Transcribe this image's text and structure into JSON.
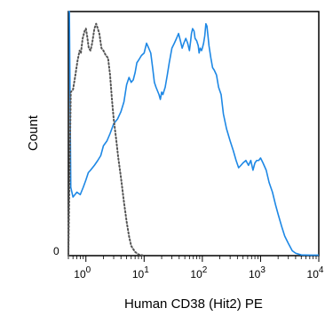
{
  "chart_data": {
    "type": "line",
    "title": "",
    "xlabel": "Human CD38 (Hit2) PE",
    "ylabel": "Count",
    "x_scale": "log",
    "xlim": [
      0.5,
      10000
    ],
    "ylim": [
      0,
      100
    ],
    "x_ticks": [
      {
        "value": 1,
        "base": "10",
        "exp": "0"
      },
      {
        "value": 10,
        "base": "10",
        "exp": "1"
      },
      {
        "value": 100,
        "base": "10",
        "exp": "2"
      },
      {
        "value": 1000,
        "base": "10",
        "exp": "3"
      },
      {
        "value": 10000,
        "base": "10",
        "exp": "4"
      }
    ],
    "y_tick_labels": [
      {
        "value": 0,
        "label": "0"
      }
    ],
    "grid": false,
    "series": [
      {
        "line_style": "solid",
        "color": "#1e88e5",
        "points": [
          [
            0.5,
            100
          ],
          [
            0.52,
            100
          ],
          [
            0.55,
            28
          ],
          [
            0.6,
            24
          ],
          [
            0.7,
            26
          ],
          [
            0.8,
            25
          ],
          [
            0.9,
            28
          ],
          [
            1.0,
            31
          ],
          [
            1.1,
            34
          ],
          [
            1.2,
            35
          ],
          [
            1.4,
            37
          ],
          [
            1.6,
            39
          ],
          [
            1.8,
            41
          ],
          [
            2.0,
            45
          ],
          [
            2.3,
            47
          ],
          [
            2.6,
            50
          ],
          [
            3.0,
            54
          ],
          [
            3.5,
            56
          ],
          [
            4.0,
            59
          ],
          [
            4.5,
            63
          ],
          [
            5.0,
            70
          ],
          [
            5.5,
            73
          ],
          [
            6.0,
            71
          ],
          [
            6.5,
            72
          ],
          [
            7.0,
            75
          ],
          [
            7.5,
            79
          ],
          [
            8.0,
            80
          ],
          [
            9.0,
            82
          ],
          [
            10,
            83
          ],
          [
            11,
            87
          ],
          [
            12,
            85
          ],
          [
            13,
            83
          ],
          [
            14,
            77
          ],
          [
            15,
            71
          ],
          [
            16,
            69
          ],
          [
            18,
            66
          ],
          [
            19,
            64
          ],
          [
            20,
            67
          ],
          [
            21,
            66
          ],
          [
            23,
            69
          ],
          [
            25,
            74
          ],
          [
            27,
            79
          ],
          [
            30,
            85
          ],
          [
            33,
            87
          ],
          [
            36,
            89
          ],
          [
            39,
            91
          ],
          [
            42,
            88
          ],
          [
            45,
            85
          ],
          [
            48,
            87
          ],
          [
            52,
            89
          ],
          [
            56,
            87
          ],
          [
            60,
            84
          ],
          [
            63,
            88
          ],
          [
            65,
            91
          ],
          [
            68,
            93
          ],
          [
            72,
            92
          ],
          [
            75,
            89
          ],
          [
            80,
            88
          ],
          [
            85,
            86
          ],
          [
            88,
            83
          ],
          [
            92,
            85
          ],
          [
            97,
            84
          ],
          [
            100,
            85
          ],
          [
            105,
            87
          ],
          [
            110,
            90
          ],
          [
            115,
            95
          ],
          [
            120,
            94
          ],
          [
            125,
            90
          ],
          [
            130,
            86
          ],
          [
            140,
            81
          ],
          [
            150,
            77
          ],
          [
            160,
            76
          ],
          [
            175,
            74
          ],
          [
            190,
            69
          ],
          [
            210,
            66
          ],
          [
            230,
            58
          ],
          [
            260,
            52
          ],
          [
            300,
            47
          ],
          [
            340,
            43
          ],
          [
            380,
            39
          ],
          [
            420,
            36
          ],
          [
            460,
            37
          ],
          [
            500,
            38
          ],
          [
            560,
            39
          ],
          [
            620,
            37
          ],
          [
            680,
            39
          ],
          [
            740,
            35
          ],
          [
            800,
            38
          ],
          [
            860,
            39
          ],
          [
            930,
            39
          ],
          [
            1000,
            40
          ],
          [
            1100,
            38
          ],
          [
            1250,
            35
          ],
          [
            1400,
            30
          ],
          [
            1600,
            26
          ],
          [
            1800,
            21
          ],
          [
            2000,
            17
          ],
          [
            2300,
            12
          ],
          [
            2600,
            8
          ],
          [
            3000,
            5
          ],
          [
            3500,
            2
          ],
          [
            4000,
            1
          ],
          [
            5000,
            0.3
          ],
          [
            7000,
            0.2
          ],
          [
            10000,
            0.2
          ]
        ]
      },
      {
        "line_style": "dotted",
        "color": "#555555",
        "points": [
          [
            0.5,
            0
          ],
          [
            0.55,
            67
          ],
          [
            0.6,
            68
          ],
          [
            0.65,
            73
          ],
          [
            0.72,
            80
          ],
          [
            0.78,
            84
          ],
          [
            0.82,
            83
          ],
          [
            0.88,
            89
          ],
          [
            0.95,
            92
          ],
          [
            1.0,
            93
          ],
          [
            1.05,
            90
          ],
          [
            1.12,
            85
          ],
          [
            1.2,
            84
          ],
          [
            1.28,
            87
          ],
          [
            1.4,
            93
          ],
          [
            1.5,
            95
          ],
          [
            1.6,
            93
          ],
          [
            1.7,
            91
          ],
          [
            1.85,
            85
          ],
          [
            2.0,
            84
          ],
          [
            2.2,
            82
          ],
          [
            2.4,
            81
          ],
          [
            2.6,
            74
          ],
          [
            2.8,
            64
          ],
          [
            3.0,
            56
          ],
          [
            3.3,
            48
          ],
          [
            3.6,
            40
          ],
          [
            4.0,
            32
          ],
          [
            4.5,
            22
          ],
          [
            5.0,
            14
          ],
          [
            5.5,
            8
          ],
          [
            6.0,
            4
          ],
          [
            7.0,
            1.5
          ],
          [
            8.0,
            0.5
          ],
          [
            10,
            0
          ]
        ]
      }
    ]
  }
}
